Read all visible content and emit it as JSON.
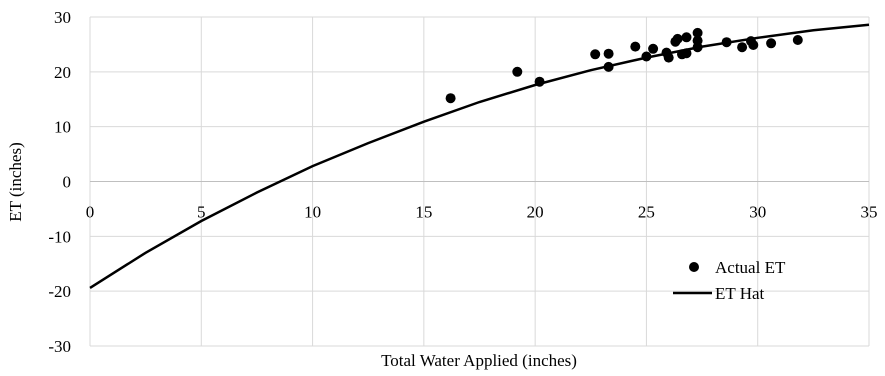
{
  "chart_data": {
    "type": "scatter",
    "title": "",
    "xlabel": "Total Water Applied (inches)",
    "ylabel": "ET (inches)",
    "xlim": [
      0,
      35
    ],
    "ylim": [
      -30,
      30
    ],
    "x_ticks": [
      0,
      5,
      10,
      15,
      20,
      25,
      30,
      35
    ],
    "y_ticks": [
      -30,
      -20,
      -10,
      0,
      10,
      20,
      30
    ],
    "grid": true,
    "legend_position": "bottom-right",
    "series": [
      {
        "name": "Actual ET",
        "kind": "scatter",
        "color": "#000000",
        "points": [
          [
            16.2,
            15.2
          ],
          [
            19.2,
            20.0
          ],
          [
            20.2,
            18.2
          ],
          [
            22.7,
            23.2
          ],
          [
            23.3,
            20.9
          ],
          [
            23.3,
            23.3
          ],
          [
            24.5,
            24.6
          ],
          [
            25.0,
            22.8
          ],
          [
            25.3,
            24.2
          ],
          [
            25.9,
            23.5
          ],
          [
            26.0,
            22.6
          ],
          [
            26.3,
            25.5
          ],
          [
            26.4,
            26.0
          ],
          [
            26.6,
            23.2
          ],
          [
            26.8,
            26.3
          ],
          [
            26.8,
            23.4
          ],
          [
            27.3,
            27.1
          ],
          [
            27.3,
            25.7
          ],
          [
            27.3,
            24.5
          ],
          [
            28.6,
            25.4
          ],
          [
            29.3,
            24.5
          ],
          [
            29.7,
            25.6
          ],
          [
            29.8,
            24.9
          ],
          [
            30.6,
            25.2
          ],
          [
            31.8,
            25.8
          ]
        ]
      },
      {
        "name": "ET Hat",
        "kind": "line",
        "color": "#000000",
        "curve": {
          "x": [
            0,
            2.5,
            5,
            7.5,
            10,
            12.5,
            15,
            17.5,
            20,
            22.5,
            25,
            27.5,
            30,
            32.5,
            35
          ],
          "y": [
            -19.4,
            -13.0,
            -7.2,
            -2.0,
            2.8,
            7.0,
            10.9,
            14.5,
            17.6,
            20.3,
            22.6,
            24.6,
            26.2,
            27.6,
            28.6
          ]
        }
      }
    ]
  }
}
